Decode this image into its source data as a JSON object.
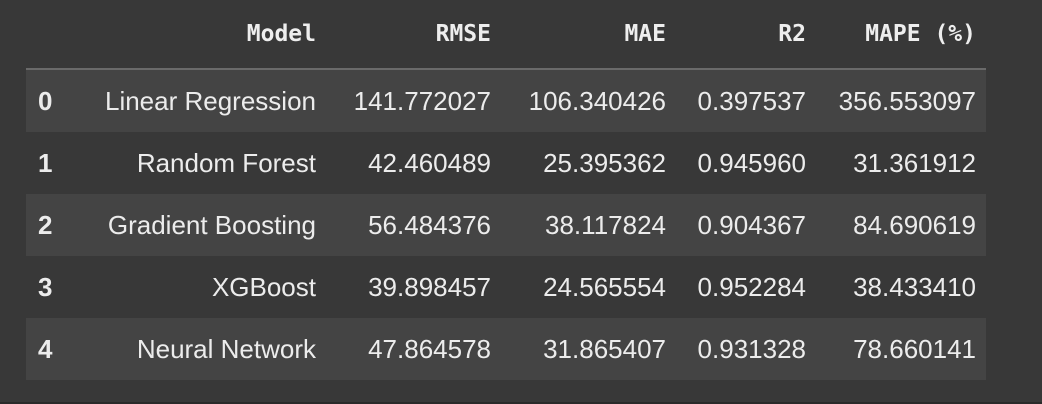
{
  "table": {
    "columns": [
      "",
      "Model",
      "RMSE",
      "MAE",
      "R2",
      "MAPE (%)"
    ],
    "rows": [
      {
        "index": "0",
        "model": "Linear Regression",
        "rmse": "141.772027",
        "mae": "106.340426",
        "r2": "0.397537",
        "mape": "356.553097"
      },
      {
        "index": "1",
        "model": "Random Forest",
        "rmse": "42.460489",
        "mae": "25.395362",
        "r2": "0.945960",
        "mape": "31.361912"
      },
      {
        "index": "2",
        "model": "Gradient Boosting",
        "rmse": "56.484376",
        "mae": "38.117824",
        "r2": "0.904367",
        "mape": "84.690619"
      },
      {
        "index": "3",
        "model": "XGBoost",
        "rmse": "39.898457",
        "mae": "24.565554",
        "r2": "0.952284",
        "mape": "38.433410"
      },
      {
        "index": "4",
        "model": "Neural Network",
        "rmse": "47.864578",
        "mae": "31.865407",
        "r2": "0.931328",
        "mape": "78.660141"
      }
    ]
  },
  "colors": {
    "background": "#383838",
    "row_alt": "#444444",
    "text": "#ececec",
    "header_rule": "#6a6a6a"
  }
}
